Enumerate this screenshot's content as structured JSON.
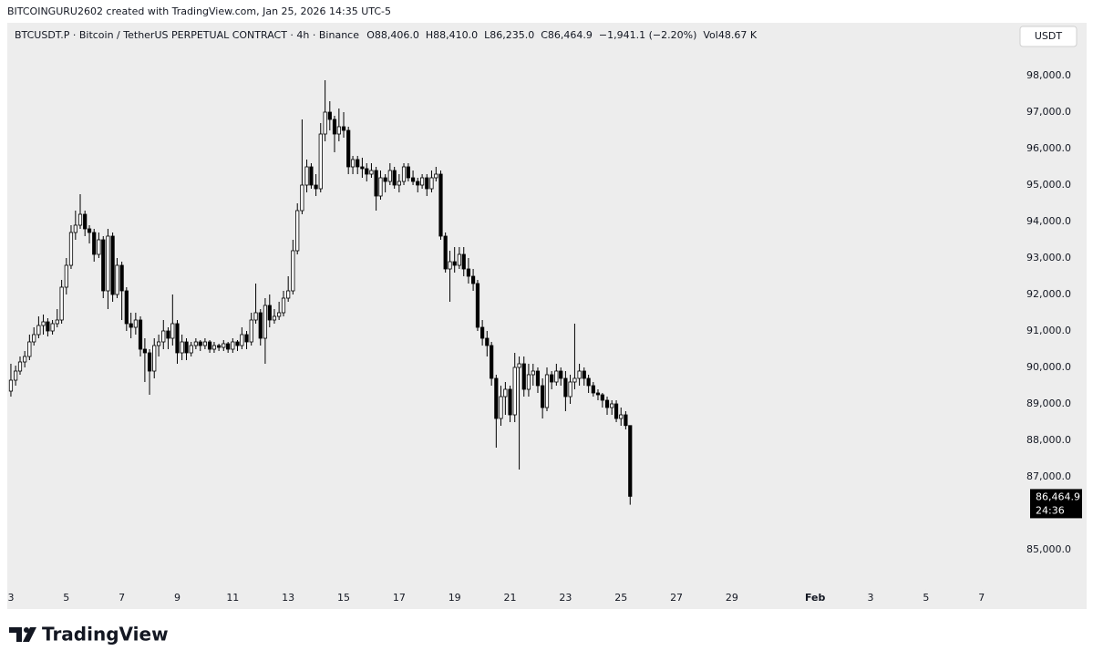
{
  "credit": "BITCOINGURU2602 created with TradingView.com, Jan 25, 2026 14:35 UTC-5",
  "logo": "TradingView",
  "chart_data": {
    "type": "candlestick",
    "title": "BTCUSDT.P · Bitcoin / TetherUS PERPETUAL CONTRACT · 4h · Binance",
    "legend_values": [
      "O88,406.0",
      "H88,410.0",
      "L86,235.0",
      "C86,464.9",
      "−1,941.1 (−2.20%)",
      "Vol48.67 K"
    ],
    "currency": "USDT",
    "last_price": {
      "value": 86464.9,
      "label": "86,464.9"
    },
    "countdown": "24:36",
    "up_color": "#ffffff",
    "down_color": "#000000",
    "edge_color": "#000000",
    "xlim": [
      2.87,
      39.16
    ],
    "ylim": [
      84025,
      98825
    ],
    "xticks": [
      3,
      5,
      7,
      9,
      11,
      13,
      15,
      17,
      19,
      21,
      23,
      25,
      27,
      29,
      {
        "value": 32,
        "label": "Feb"
      },
      {
        "value": 34,
        "label": "3"
      },
      {
        "value": 36,
        "label": "5"
      },
      {
        "value": 38,
        "label": "7"
      }
    ],
    "yticks": [
      {
        "value": 85000,
        "label": "85,000.0"
      },
      {
        "value": 87000,
        "label": "87,000.0"
      },
      {
        "value": 88000,
        "label": "88,000.0"
      },
      {
        "value": 89000,
        "label": "89,000.0"
      },
      {
        "value": 90000,
        "label": "90,000.0"
      },
      {
        "value": 91000,
        "label": "91,000.0"
      },
      {
        "value": 92000,
        "label": "92,000.0"
      },
      {
        "value": 93000,
        "label": "93,000.0"
      },
      {
        "value": 94000,
        "label": "94,000.0"
      },
      {
        "value": 95000,
        "label": "95,000.0"
      },
      {
        "value": 96000,
        "label": "96,000.0"
      },
      {
        "value": 97000,
        "label": "97,000.0"
      },
      {
        "value": 98000,
        "label": "98,000.0"
      }
    ],
    "x": [
      3,
      3.17,
      3.33,
      3.5,
      3.67,
      3.83,
      4,
      4.17,
      4.33,
      4.5,
      4.67,
      4.83,
      5,
      5.17,
      5.33,
      5.5,
      5.67,
      5.83,
      6,
      6.17,
      6.33,
      6.5,
      6.67,
      6.83,
      7,
      7.17,
      7.33,
      7.5,
      7.67,
      7.83,
      8,
      8.17,
      8.33,
      8.5,
      8.67,
      8.83,
      9,
      9.17,
      9.33,
      9.5,
      9.67,
      9.83,
      10,
      10.17,
      10.33,
      10.5,
      10.67,
      10.83,
      11,
      11.17,
      11.33,
      11.5,
      11.67,
      11.83,
      12,
      12.17,
      12.33,
      12.5,
      12.67,
      12.83,
      13,
      13.17,
      13.33,
      13.5,
      13.67,
      13.83,
      14,
      14.17,
      14.33,
      14.5,
      14.67,
      14.83,
      15,
      15.17,
      15.33,
      15.5,
      15.67,
      15.83,
      16,
      16.17,
      16.33,
      16.5,
      16.67,
      16.83,
      17,
      17.17,
      17.33,
      17.5,
      17.67,
      17.83,
      18,
      18.17,
      18.33,
      18.5,
      18.67,
      18.83,
      19,
      19.17,
      19.33,
      19.5,
      19.67,
      19.83,
      20,
      20.17,
      20.33,
      20.5,
      20.67,
      20.83,
      21,
      21.17,
      21.33,
      21.5,
      21.67,
      21.83,
      22,
      22.17,
      22.33,
      22.5,
      22.67,
      22.83,
      23,
      23.17,
      23.33,
      23.5,
      23.67,
      23.83,
      24,
      24.17,
      24.33,
      24.5,
      24.67,
      24.83,
      25,
      25.17,
      25.33
    ],
    "ohlc": [
      [
        89350,
        90100,
        89200,
        89650
      ],
      [
        89650,
        90050,
        89500,
        89900
      ],
      [
        89900,
        90300,
        89800,
        90150
      ],
      [
        90150,
        90450,
        90000,
        90300
      ],
      [
        90300,
        90900,
        90200,
        90700
      ],
      [
        90700,
        91100,
        90600,
        90900
      ],
      [
        90900,
        91400,
        90800,
        91150
      ],
      [
        91150,
        91450,
        90900,
        91250
      ],
      [
        91250,
        91350,
        90850,
        91000
      ],
      [
        91000,
        91300,
        90900,
        91200
      ],
      [
        91200,
        91600,
        91100,
        91300
      ],
      [
        91300,
        92400,
        91200,
        92200
      ],
      [
        92200,
        93000,
        92000,
        92800
      ],
      [
        92800,
        93900,
        92700,
        93700
      ],
      [
        93700,
        94300,
        93500,
        93900
      ],
      [
        93900,
        94750,
        93800,
        94200
      ],
      [
        94200,
        94300,
        93600,
        93800
      ],
      [
        93800,
        93900,
        93400,
        93700
      ],
      [
        93700,
        93800,
        92900,
        93100
      ],
      [
        93100,
        93700,
        93000,
        93500
      ],
      [
        93500,
        93600,
        91900,
        92100
      ],
      [
        92100,
        93800,
        91600,
        93600
      ],
      [
        93600,
        93700,
        91800,
        92000
      ],
      [
        92000,
        93000,
        91900,
        92800
      ],
      [
        92800,
        92900,
        91300,
        92100
      ],
      [
        92100,
        92200,
        91000,
        91200
      ],
      [
        91200,
        91500,
        90800,
        91100
      ],
      [
        91100,
        91500,
        90900,
        91300
      ],
      [
        91300,
        91400,
        90300,
        90500
      ],
      [
        90500,
        90800,
        89600,
        90400
      ],
      [
        90400,
        90500,
        89250,
        89900
      ],
      [
        89900,
        90800,
        89700,
        90600
      ],
      [
        90600,
        90900,
        90300,
        90700
      ],
      [
        90700,
        91300,
        90500,
        91000
      ],
      [
        91000,
        91100,
        90500,
        90800
      ],
      [
        90800,
        92000,
        90600,
        91200
      ],
      [
        91200,
        91300,
        90100,
        90400
      ],
      [
        90400,
        90900,
        90200,
        90700
      ],
      [
        90700,
        90800,
        90200,
        90400
      ],
      [
        90400,
        90700,
        90300,
        90600
      ],
      [
        90600,
        90800,
        90500,
        90700
      ],
      [
        90700,
        90750,
        90450,
        90600
      ],
      [
        90600,
        90800,
        90500,
        90700
      ],
      [
        90700,
        90750,
        90400,
        90500
      ],
      [
        90500,
        90700,
        90400,
        90600
      ],
      [
        90600,
        90650,
        90450,
        90550
      ],
      [
        90550,
        90750,
        90450,
        90650
      ],
      [
        90650,
        90700,
        90400,
        90500
      ],
      [
        90500,
        90800,
        90400,
        90700
      ],
      [
        90700,
        90750,
        90450,
        90600
      ],
      [
        90600,
        91100,
        90500,
        90900
      ],
      [
        90900,
        91000,
        90500,
        90700
      ],
      [
        90700,
        91500,
        90600,
        91300
      ],
      [
        91300,
        92300,
        91200,
        91500
      ],
      [
        91500,
        91600,
        90600,
        90800
      ],
      [
        90800,
        91900,
        90100,
        91700
      ],
      [
        91700,
        92000,
        91100,
        91300
      ],
      [
        91300,
        91600,
        91200,
        91400
      ],
      [
        91400,
        91800,
        91300,
        91500
      ],
      [
        91500,
        92100,
        91400,
        91900
      ],
      [
        91900,
        92500,
        91800,
        92100
      ],
      [
        92100,
        93500,
        92000,
        93200
      ],
      [
        93200,
        94500,
        93100,
        94300
      ],
      [
        94300,
        96800,
        94200,
        95000
      ],
      [
        95000,
        95700,
        94800,
        95500
      ],
      [
        95500,
        95600,
        94900,
        95000
      ],
      [
        95000,
        95300,
        94700,
        94900
      ],
      [
        94900,
        96700,
        94800,
        96400
      ],
      [
        96400,
        97875,
        96200,
        97000
      ],
      [
        97000,
        97300,
        96500,
        96800
      ],
      [
        96800,
        96900,
        95900,
        96400
      ],
      [
        96400,
        97100,
        96200,
        96600
      ],
      [
        96600,
        97000,
        96300,
        96500
      ],
      [
        96500,
        96600,
        95300,
        95500
      ],
      [
        95500,
        95800,
        95300,
        95700
      ],
      [
        95700,
        95800,
        95300,
        95500
      ],
      [
        95500,
        95750,
        95200,
        95450
      ],
      [
        95450,
        95600,
        95100,
        95300
      ],
      [
        95300,
        95600,
        95200,
        95400
      ],
      [
        95400,
        95500,
        94300,
        94700
      ],
      [
        94700,
        95400,
        94600,
        95200
      ],
      [
        95200,
        95300,
        94800,
        95100
      ],
      [
        95100,
        95600,
        95000,
        95400
      ],
      [
        95400,
        95500,
        94900,
        95000
      ],
      [
        95000,
        95300,
        94800,
        95100
      ],
      [
        95100,
        95600,
        95000,
        95500
      ],
      [
        95500,
        95600,
        95100,
        95200
      ],
      [
        95200,
        95400,
        95000,
        95100
      ],
      [
        95100,
        95200,
        94800,
        95000
      ],
      [
        95000,
        95300,
        94900,
        95200
      ],
      [
        95200,
        95300,
        94700,
        94900
      ],
      [
        94900,
        95400,
        94800,
        95200
      ],
      [
        95200,
        95500,
        95100,
        95300
      ],
      [
        95300,
        95400,
        93500,
        93600
      ],
      [
        93600,
        93700,
        92600,
        92700
      ],
      [
        92700,
        93200,
        91800,
        92900
      ],
      [
        92900,
        93300,
        92600,
        92800
      ],
      [
        92800,
        93300,
        92700,
        93100
      ],
      [
        93100,
        93300,
        92500,
        92700
      ],
      [
        92700,
        93000,
        92300,
        92500
      ],
      [
        92500,
        92700,
        92100,
        92300
      ],
      [
        92300,
        92400,
        91000,
        91100
      ],
      [
        91100,
        91300,
        90600,
        90800
      ],
      [
        90800,
        91000,
        90300,
        90600
      ],
      [
        90600,
        90700,
        89500,
        89700
      ],
      [
        89700,
        89800,
        87800,
        88600
      ],
      [
        88600,
        89500,
        88400,
        89200
      ],
      [
        89200,
        89600,
        88700,
        89400
      ],
      [
        89400,
        89500,
        88500,
        88700
      ],
      [
        88700,
        90400,
        88500,
        90000
      ],
      [
        90000,
        90300,
        87200,
        90100
      ],
      [
        90100,
        90300,
        89200,
        89400
      ],
      [
        89400,
        90100,
        89200,
        89800
      ],
      [
        89800,
        90100,
        89500,
        89900
      ],
      [
        89900,
        90000,
        89300,
        89500
      ],
      [
        89500,
        89700,
        88600,
        88900
      ],
      [
        88900,
        90000,
        88800,
        89800
      ],
      [
        89800,
        89900,
        89400,
        89600
      ],
      [
        89600,
        90100,
        89500,
        89900
      ],
      [
        89900,
        90000,
        89500,
        89700
      ],
      [
        89700,
        89900,
        88800,
        89200
      ],
      [
        89200,
        89800,
        89000,
        89600
      ],
      [
        89600,
        91200,
        89400,
        89700
      ],
      [
        89700,
        90100,
        89500,
        89900
      ],
      [
        89900,
        90000,
        89500,
        89700
      ],
      [
        89700,
        89800,
        89300,
        89500
      ],
      [
        89500,
        89600,
        89200,
        89300
      ],
      [
        89300,
        89400,
        89100,
        89250
      ],
      [
        89250,
        89300,
        88900,
        89100
      ],
      [
        89100,
        89200,
        88700,
        88900
      ],
      [
        88900,
        89100,
        88700,
        89000
      ],
      [
        89000,
        89100,
        88500,
        88600
      ],
      [
        88600,
        88900,
        88400,
        88700
      ],
      [
        88700,
        88800,
        88300,
        88406
      ],
      [
        88406,
        88410,
        86235,
        86464.9
      ]
    ]
  }
}
